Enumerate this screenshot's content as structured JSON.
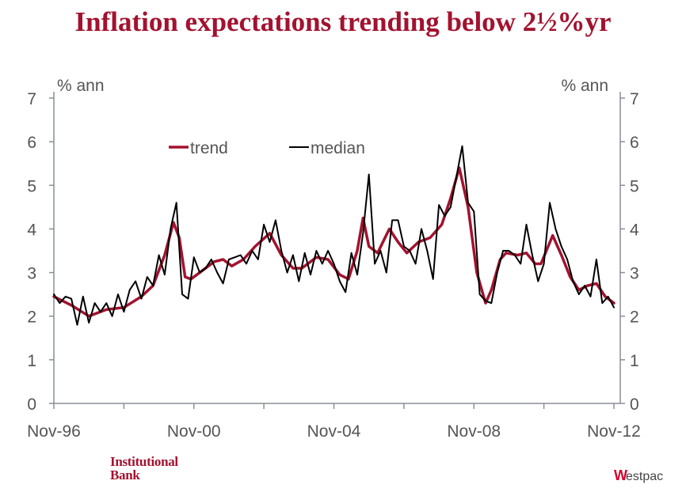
{
  "chart_data": {
    "type": "line",
    "title": "Inflation expectations trending below 2½%yr",
    "ylabel_left": "% ann",
    "ylabel_right": "% ann",
    "ylim": [
      0,
      7
    ],
    "yticks": [
      "0",
      "1",
      "2",
      "3",
      "4",
      "5",
      "6",
      "7"
    ],
    "xlim": [
      "1996-11",
      "2012-11"
    ],
    "xtick_labels": [
      "Nov-96",
      "Nov-00",
      "Nov-04",
      "Nov-08",
      "Nov-12"
    ],
    "xtick_label_dates": [
      "1996-11",
      "2000-11",
      "2004-11",
      "2008-11",
      "2012-11"
    ],
    "xtick_marks": [
      "1996-11",
      "1998-11",
      "2000-11",
      "2002-11",
      "2004-11",
      "2006-11",
      "2008-11",
      "2010-11",
      "2012-11"
    ],
    "legend_position": "top-center",
    "grid": false,
    "series": [
      {
        "name": "trend",
        "color": "#a3122f",
        "points": [
          [
            "1996-11",
            2.45
          ],
          [
            "1997-05",
            2.25
          ],
          [
            "1997-11",
            2.0
          ],
          [
            "1998-05",
            2.15
          ],
          [
            "1998-11",
            2.2
          ],
          [
            "1999-05",
            2.45
          ],
          [
            "1999-09",
            2.7
          ],
          [
            "2000-01",
            3.4
          ],
          [
            "2000-04",
            4.15
          ],
          [
            "2000-06",
            3.8
          ],
          [
            "2000-08",
            2.9
          ],
          [
            "2000-10",
            2.85
          ],
          [
            "2001-02",
            3.05
          ],
          [
            "2001-06",
            3.25
          ],
          [
            "2001-09",
            3.3
          ],
          [
            "2001-12",
            3.15
          ],
          [
            "2002-04",
            3.3
          ],
          [
            "2002-08",
            3.6
          ],
          [
            "2003-01",
            3.9
          ],
          [
            "2003-05",
            3.4
          ],
          [
            "2003-09",
            3.1
          ],
          [
            "2003-12",
            3.1
          ],
          [
            "2004-05",
            3.35
          ],
          [
            "2004-09",
            3.3
          ],
          [
            "2005-01",
            2.95
          ],
          [
            "2005-04",
            2.85
          ],
          [
            "2005-07",
            3.5
          ],
          [
            "2005-09",
            4.25
          ],
          [
            "2005-11",
            3.6
          ],
          [
            "2006-02",
            3.45
          ],
          [
            "2006-06",
            4.0
          ],
          [
            "2006-09",
            3.7
          ],
          [
            "2006-12",
            3.45
          ],
          [
            "2007-04",
            3.7
          ],
          [
            "2007-08",
            3.8
          ],
          [
            "2007-12",
            4.1
          ],
          [
            "2008-03",
            4.7
          ],
          [
            "2008-06",
            5.4
          ],
          [
            "2008-09",
            4.5
          ],
          [
            "2008-12",
            3.0
          ],
          [
            "2009-03",
            2.3
          ],
          [
            "2009-05",
            2.6
          ],
          [
            "2009-08",
            3.3
          ],
          [
            "2009-10",
            3.45
          ],
          [
            "2010-02",
            3.4
          ],
          [
            "2010-05",
            3.45
          ],
          [
            "2010-08",
            3.2
          ],
          [
            "2010-10",
            3.2
          ],
          [
            "2011-02",
            3.85
          ],
          [
            "2011-05",
            3.4
          ],
          [
            "2011-08",
            2.9
          ],
          [
            "2011-11",
            2.6
          ],
          [
            "2012-02",
            2.7
          ],
          [
            "2012-05",
            2.75
          ],
          [
            "2012-08",
            2.45
          ],
          [
            "2012-11",
            2.3
          ]
        ]
      },
      {
        "name": "median",
        "color": "#000000",
        "points": [
          [
            "1996-11",
            2.5
          ],
          [
            "1997-01",
            2.3
          ],
          [
            "1997-03",
            2.45
          ],
          [
            "1997-05",
            2.4
          ],
          [
            "1997-07",
            1.8
          ],
          [
            "1997-09",
            2.45
          ],
          [
            "1997-11",
            1.85
          ],
          [
            "1998-01",
            2.3
          ],
          [
            "1998-03",
            2.1
          ],
          [
            "1998-05",
            2.3
          ],
          [
            "1998-07",
            2.0
          ],
          [
            "1998-09",
            2.5
          ],
          [
            "1998-11",
            2.1
          ],
          [
            "1999-01",
            2.6
          ],
          [
            "1999-03",
            2.8
          ],
          [
            "1999-05",
            2.4
          ],
          [
            "1999-07",
            2.9
          ],
          [
            "1999-09",
            2.7
          ],
          [
            "1999-11",
            3.4
          ],
          [
            "2000-01",
            2.95
          ],
          [
            "2000-03",
            4.0
          ],
          [
            "2000-05",
            4.6
          ],
          [
            "2000-07",
            2.5
          ],
          [
            "2000-09",
            2.4
          ],
          [
            "2000-11",
            3.35
          ],
          [
            "2001-01",
            3.0
          ],
          [
            "2001-03",
            3.1
          ],
          [
            "2001-05",
            3.3
          ],
          [
            "2001-07",
            3.0
          ],
          [
            "2001-09",
            2.75
          ],
          [
            "2001-11",
            3.3
          ],
          [
            "2002-01",
            3.35
          ],
          [
            "2002-03",
            3.4
          ],
          [
            "2002-05",
            3.2
          ],
          [
            "2002-07",
            3.5
          ],
          [
            "2002-09",
            3.3
          ],
          [
            "2002-11",
            4.1
          ],
          [
            "2003-01",
            3.7
          ],
          [
            "2003-03",
            4.2
          ],
          [
            "2003-05",
            3.5
          ],
          [
            "2003-07",
            3.0
          ],
          [
            "2003-09",
            3.4
          ],
          [
            "2003-11",
            2.8
          ],
          [
            "2004-01",
            3.45
          ],
          [
            "2004-03",
            2.95
          ],
          [
            "2004-05",
            3.5
          ],
          [
            "2004-07",
            3.2
          ],
          [
            "2004-09",
            3.5
          ],
          [
            "2004-11",
            3.2
          ],
          [
            "2005-01",
            2.8
          ],
          [
            "2005-03",
            2.55
          ],
          [
            "2005-05",
            3.45
          ],
          [
            "2005-07",
            2.95
          ],
          [
            "2005-09",
            3.9
          ],
          [
            "2005-11",
            5.25
          ],
          [
            "2006-01",
            3.2
          ],
          [
            "2006-03",
            3.5
          ],
          [
            "2006-05",
            3.0
          ],
          [
            "2006-07",
            4.2
          ],
          [
            "2006-09",
            4.2
          ],
          [
            "2006-11",
            3.6
          ],
          [
            "2007-01",
            3.5
          ],
          [
            "2007-03",
            3.2
          ],
          [
            "2007-05",
            4.0
          ],
          [
            "2007-07",
            3.5
          ],
          [
            "2007-09",
            2.85
          ],
          [
            "2007-11",
            4.55
          ],
          [
            "2008-01",
            4.3
          ],
          [
            "2008-03",
            4.5
          ],
          [
            "2008-05",
            5.2
          ],
          [
            "2008-07",
            5.9
          ],
          [
            "2008-09",
            4.6
          ],
          [
            "2008-11",
            4.4
          ],
          [
            "2009-01",
            2.5
          ],
          [
            "2009-03",
            2.35
          ],
          [
            "2009-05",
            2.3
          ],
          [
            "2009-07",
            3.0
          ],
          [
            "2009-09",
            3.5
          ],
          [
            "2009-11",
            3.5
          ],
          [
            "2010-01",
            3.4
          ],
          [
            "2010-03",
            3.2
          ],
          [
            "2010-05",
            4.1
          ],
          [
            "2010-07",
            3.4
          ],
          [
            "2010-09",
            2.8
          ],
          [
            "2010-11",
            3.2
          ],
          [
            "2011-01",
            4.6
          ],
          [
            "2011-03",
            4.0
          ],
          [
            "2011-05",
            3.6
          ],
          [
            "2011-07",
            3.3
          ],
          [
            "2011-09",
            2.8
          ],
          [
            "2011-11",
            2.5
          ],
          [
            "2012-01",
            2.7
          ],
          [
            "2012-03",
            2.45
          ],
          [
            "2012-05",
            3.3
          ],
          [
            "2012-07",
            2.3
          ],
          [
            "2012-09",
            2.45
          ],
          [
            "2012-11",
            2.2
          ]
        ]
      }
    ]
  },
  "footer": {
    "left_logo": [
      "Institutional",
      "Bank"
    ],
    "right_logo": "Westpac",
    "right_logo_mark": "W",
    "right_logo_rest": "estpac"
  }
}
